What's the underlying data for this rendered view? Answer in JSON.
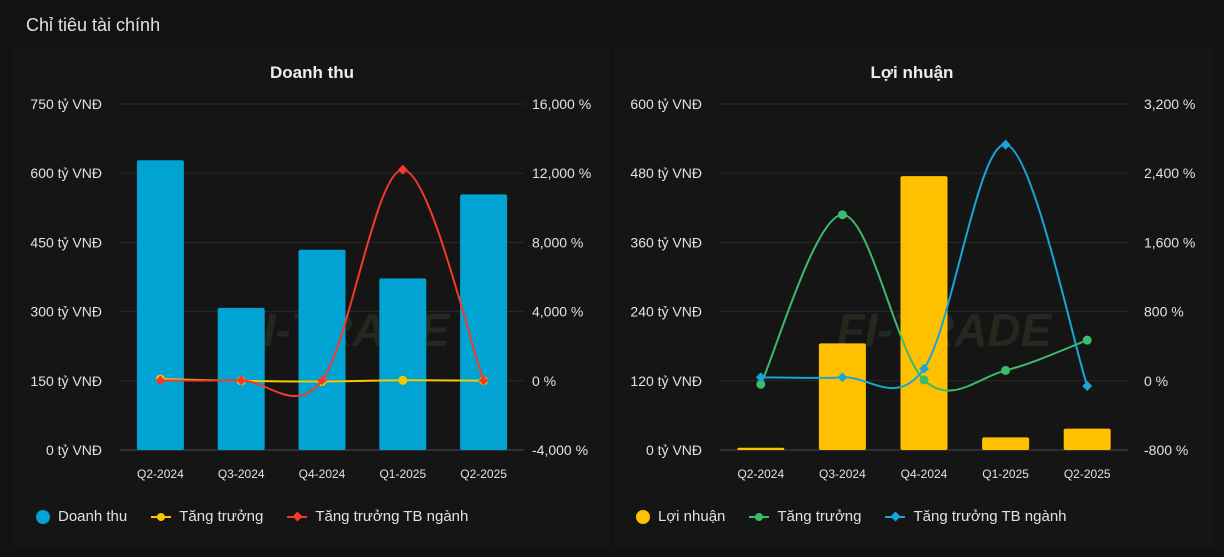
{
  "page": {
    "title": "Chỉ tiêu tài chính",
    "watermark": "FI-TRADE"
  },
  "chart_data": [
    {
      "type": "bar",
      "title": "Doanh thu",
      "categories": [
        "Q2-2024",
        "Q3-2024",
        "Q4-2024",
        "Q1-2025",
        "Q2-2025"
      ],
      "y_left": {
        "min": 0,
        "max": 750,
        "ticks": [
          "0 tỷ VNĐ",
          "150 tỷ VNĐ",
          "300 tỷ VNĐ",
          "450 tỷ VNĐ",
          "600 tỷ VNĐ",
          "750 tỷ VNĐ"
        ],
        "tick_values": [
          0,
          150,
          300,
          450,
          600,
          750
        ]
      },
      "y_right": {
        "min": -4000,
        "max": 16000,
        "ticks": [
          "-4,000 %",
          "0 %",
          "4,000 %",
          "8,000 %",
          "12,000 %",
          "16,000 %"
        ],
        "tick_values": [
          -4000,
          0,
          4000,
          8000,
          12000,
          16000
        ]
      },
      "bars": {
        "name": "Doanh thu",
        "values": [
          628,
          308,
          434,
          372,
          554
        ],
        "color": "#00a3d2"
      },
      "lines": [
        {
          "name": "Tăng trưởng",
          "values": [
            100,
            0,
            -40,
            30,
            10
          ],
          "color": "#f5c800",
          "marker": "circle"
        },
        {
          "name": "Tăng trưởng TB ngành",
          "values": [
            20,
            20,
            20,
            12200,
            20
          ],
          "color": "#f23a2a",
          "marker": "diamond"
        }
      ],
      "legend": "bottom-left",
      "grid": true
    },
    {
      "type": "bar",
      "title": "Lợi nhuận",
      "categories": [
        "Q2-2024",
        "Q3-2024",
        "Q4-2024",
        "Q1-2025",
        "Q2-2025"
      ],
      "y_left": {
        "min": 0,
        "max": 600,
        "ticks": [
          "0 tỷ VNĐ",
          "120 tỷ VNĐ",
          "240 tỷ VNĐ",
          "360 tỷ VNĐ",
          "480 tỷ VNĐ",
          "600 tỷ VNĐ"
        ],
        "tick_values": [
          0,
          120,
          240,
          360,
          480,
          600
        ]
      },
      "y_right": {
        "min": -800,
        "max": 3200,
        "ticks": [
          "-800 %",
          "0 %",
          "800 %",
          "1,600 %",
          "2,400 %",
          "3,200 %"
        ],
        "tick_values": [
          -800,
          0,
          800,
          1600,
          2400,
          3200
        ]
      },
      "bars": {
        "name": "Lợi nhuận",
        "values": [
          4,
          185,
          475,
          22,
          37
        ],
        "color": "#ffc000"
      },
      "lines": [
        {
          "name": "Tăng trưởng",
          "values": [
            -40,
            1920,
            10,
            120,
            470
          ],
          "color": "#3dba6c",
          "marker": "circle"
        },
        {
          "name": "Tăng trưởng TB ngành",
          "values": [
            40,
            40,
            140,
            2730,
            -60
          ],
          "color": "#17a6d8",
          "marker": "diamond"
        }
      ],
      "legend": "bottom-left",
      "grid": true
    }
  ]
}
